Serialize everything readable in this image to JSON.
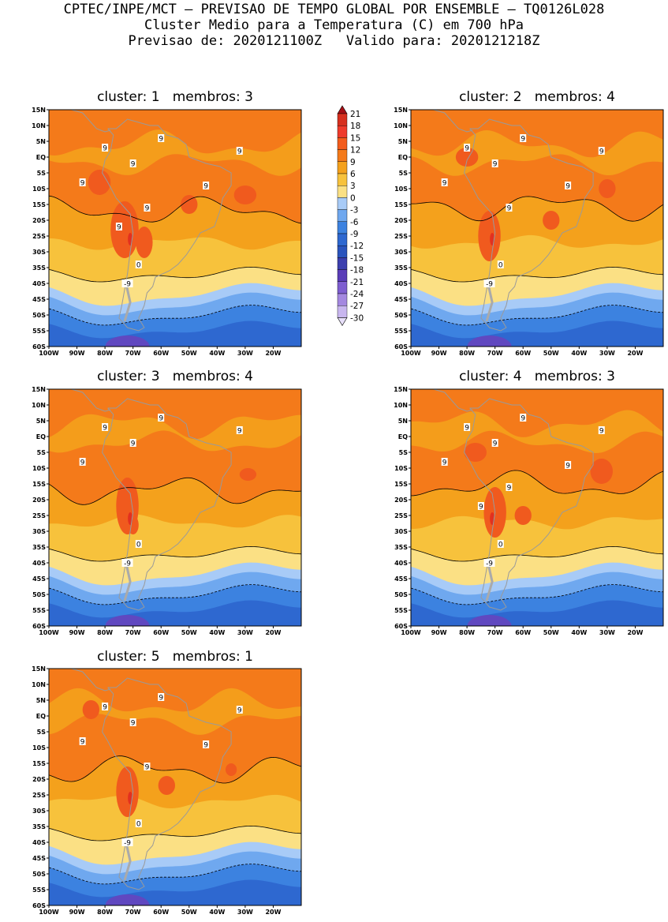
{
  "header": {
    "line1": "CPTEC/INPE/MCT – PREVISAO DE TEMPO GLOBAL POR ENSEMBLE – TQ0126L028",
    "line2": "Cluster Medio para a Temperatura (C) em 700 hPa",
    "line3": "Previsao de: 2020121100Z   Valido para: 2020121218Z"
  },
  "axes": {
    "lat_labels": [
      "15N",
      "10N",
      "5N",
      "EQ",
      "5S",
      "10S",
      "15S",
      "20S",
      "25S",
      "30S",
      "35S",
      "40S",
      "45S",
      "50S",
      "55S",
      "60S"
    ],
    "lon_labels": [
      "100W",
      "90W",
      "80W",
      "70W",
      "60W",
      "50W",
      "40W",
      "30W",
      "20W"
    ]
  },
  "colorbar": {
    "levels": [
      "21",
      "18",
      "15",
      "12",
      "9",
      "6",
      "3",
      "0",
      "-3",
      "-6",
      "-9",
      "-12",
      "-15",
      "-18",
      "-21",
      "-24",
      "-27",
      "-30"
    ],
    "colors": [
      "#a50f15",
      "#d7301f",
      "#ef3b2c",
      "#f35c1c",
      "#f47a1a",
      "#f4a11c",
      "#f7c23c",
      "#fbe084",
      "#a8cbf7",
      "#6fa8ef",
      "#3c82e0",
      "#2e68d0",
      "#2a54bd",
      "#3c3fae",
      "#5a3db8",
      "#7e5ed0",
      "#a488e0",
      "#c8b6ef",
      "#e8e0fa"
    ]
  },
  "panels": [
    {
      "title": "cluster: 1   membros: 3",
      "labels": [
        "9",
        "9",
        "9",
        "9",
        "9",
        "9",
        "9",
        "9",
        "0",
        "-9"
      ]
    },
    {
      "title": "cluster: 2   membros: 4",
      "labels": [
        "9",
        "9",
        "9",
        "9",
        "9",
        "9",
        "9",
        "0",
        "-9"
      ]
    },
    {
      "title": "cluster: 3   membros: 4",
      "labels": [
        "9",
        "9",
        "9",
        "9",
        "9",
        "0",
        "-9"
      ]
    },
    {
      "title": "cluster: 4   membros: 3",
      "labels": [
        "9",
        "9",
        "9",
        "9",
        "9",
        "9",
        "9",
        "9",
        "0",
        "-9"
      ]
    },
    {
      "title": "cluster: 5   membros: 1",
      "labels": [
        "9",
        "9",
        "9",
        "9",
        "9",
        "9",
        "9",
        "0",
        "-9"
      ]
    }
  ]
}
